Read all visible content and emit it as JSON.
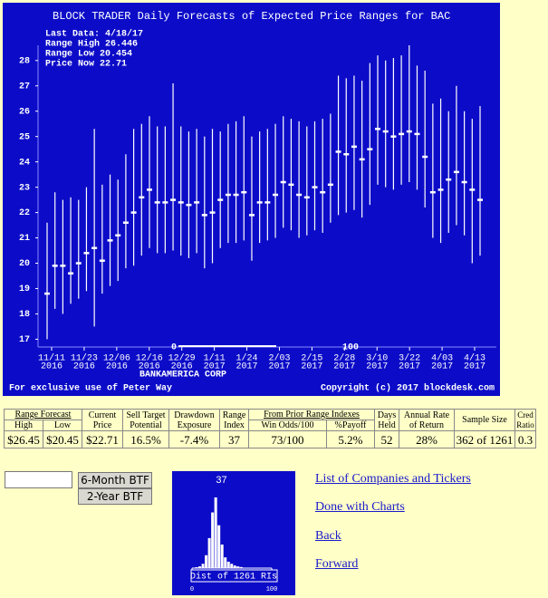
{
  "chart_data": [
    {
      "type": "range",
      "title": "BLOCK TRADER Daily Forecasts of Expected Price Ranges for  BAC",
      "info": [
        "Last Data: 4/18/17",
        "Range High 26.446",
        "Range Low  20.454",
        "Price Now  22.71"
      ],
      "color": "#ffffff",
      "high": [
        21.6,
        22.8,
        22.5,
        22.6,
        22.5,
        23.0,
        25.3,
        23.1,
        23.5,
        23.3,
        24.3,
        25.3,
        25.5,
        25.8,
        25.4,
        25.4,
        27.1,
        25.4,
        25.2,
        25.3,
        25.0,
        25.3,
        25.2,
        25.5,
        25.6,
        25.8,
        25.0,
        25.2,
        25.3,
        25.5,
        25.8,
        25.7,
        25.6,
        25.4,
        25.6,
        25.7,
        25.9,
        27.4,
        27.3,
        27.4,
        27.2,
        27.9,
        28.2,
        28.0,
        28.1,
        28.2,
        28.6,
        27.8,
        27.6,
        26.3,
        26.5,
        26.0,
        27.0,
        26.0,
        25.7,
        26.2
      ],
      "low": [
        17.0,
        18.2,
        18.0,
        18.4,
        18.6,
        18.9,
        17.5,
        18.8,
        19.1,
        19.3,
        19.8,
        19.9,
        20.3,
        20.6,
        20.4,
        20.4,
        20.5,
        20.3,
        20.2,
        20.4,
        19.8,
        20.0,
        20.6,
        20.8,
        20.8,
        20.9,
        20.1,
        20.8,
        20.9,
        21.0,
        21.4,
        21.3,
        21.0,
        21.1,
        21.3,
        21.2,
        21.6,
        21.9,
        22.0,
        22.1,
        21.8,
        22.3,
        23.1,
        23.0,
        22.9,
        23.1,
        23.2,
        22.9,
        22.2,
        21.0,
        20.8,
        21.2,
        21.5,
        21.1,
        20.0,
        20.3
      ],
      "price": [
        18.8,
        19.9,
        19.9,
        19.6,
        20.0,
        20.4,
        20.6,
        20.1,
        20.9,
        21.1,
        21.6,
        22.0,
        22.6,
        22.9,
        22.4,
        22.4,
        22.5,
        22.4,
        22.3,
        22.4,
        21.9,
        22.0,
        22.5,
        22.7,
        22.7,
        22.8,
        21.9,
        22.4,
        22.4,
        22.7,
        23.2,
        23.1,
        22.7,
        22.6,
        23.0,
        22.8,
        23.1,
        24.4,
        24.3,
        24.6,
        24.1,
        24.5,
        25.3,
        25.2,
        25.0,
        25.1,
        25.2,
        25.1,
        24.2,
        22.8,
        22.9,
        23.3,
        23.6,
        23.2,
        22.9,
        22.5
      ],
      "ylim": [
        16.8,
        28.6
      ],
      "yticks": [
        17,
        18,
        19,
        20,
        21,
        22,
        23,
        24,
        25,
        26,
        27,
        28
      ],
      "xtick_dates": [
        "11/11",
        "11/23",
        "12/06",
        "12/16",
        "12/29",
        "1/11",
        "1/24",
        "2/03",
        "2/15",
        "2/28",
        "3/10",
        "3/22",
        "4/03",
        "4/13"
      ],
      "xtick_years": [
        "2016",
        "2016",
        "2016",
        "2016",
        "2016",
        "2017",
        "2017",
        "2017",
        "2017",
        "2017",
        "2017",
        "2017",
        "2017",
        "2017"
      ],
      "marker_labels": [
        "0",
        "100"
      ],
      "company": "BANKAMERICA CORP",
      "footer_left": "For exclusive use of Peter Way",
      "footer_right": "Copyright (c) 2017 blockdesk.com"
    },
    {
      "type": "histogram",
      "marker": 37,
      "caption": "Dist of 1261 RIs",
      "bins": [
        0,
        4,
        8,
        12,
        16,
        20,
        24,
        28,
        32,
        36,
        40,
        44,
        48,
        52,
        56,
        60,
        64,
        68,
        72,
        76,
        80,
        84,
        88,
        92,
        96,
        100
      ],
      "values": [
        2,
        4,
        8,
        20,
        60,
        140,
        260,
        330,
        200,
        110,
        50,
        30,
        20,
        12,
        8,
        5,
        2,
        0,
        0,
        0,
        0,
        0,
        0,
        0,
        0
      ],
      "xlim": [
        0,
        100
      ],
      "xticks": [
        0,
        100
      ],
      "color": "#ffffff"
    }
  ],
  "table": {
    "headers": [
      "Range Forecast",
      "Current Price",
      "Sell Target Potential",
      "Drawdown Exposure",
      "Range Index",
      "From Prior Range Indexes",
      "Days Held",
      "Annual Rate of Return",
      "Sample Size",
      "Cred Ratio"
    ],
    "subheaders": [
      "High",
      "Low",
      "Win Odds/100",
      "%Payoff"
    ],
    "row": [
      "$26.45",
      "$20.45",
      "$22.71",
      "16.5%",
      "-7.4%",
      "37",
      "73/100",
      "5.2%",
      "52",
      "28%",
      "362 of 1261",
      "0.3"
    ]
  },
  "controls": {
    "buttons": [
      "6-Month BTF",
      "2-Year BTF"
    ]
  },
  "links": [
    "List of Companies and Tickers",
    "Done with Charts",
    "Back",
    "Forward"
  ]
}
